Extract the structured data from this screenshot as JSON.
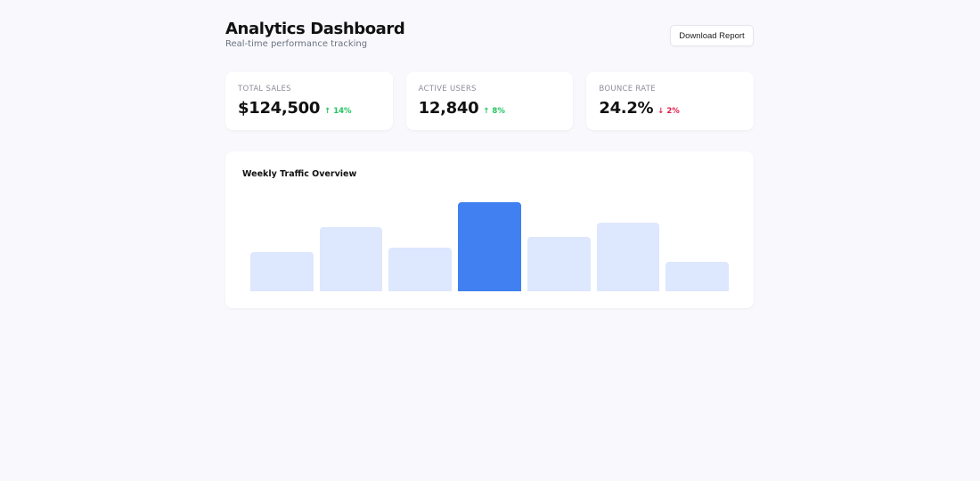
{
  "header": {
    "title": "Analytics Dashboard",
    "subtitle": "Real-time performance tracking",
    "download_label": "Download Report"
  },
  "stats": [
    {
      "label": "TOTAL SALES",
      "value": "$124,500",
      "change": "↑ 14%",
      "direction": "up"
    },
    {
      "label": "ACTIVE USERS",
      "value": "12,840",
      "change": "↑ 8%",
      "direction": "up"
    },
    {
      "label": "BOUNCE RATE",
      "value": "24.2%",
      "change": "↓ 2%",
      "direction": "down"
    }
  ],
  "colors": {
    "accent": "#4180f0",
    "bar": "#dde7fd",
    "up": "#22c55e",
    "down": "#e11d48"
  },
  "chart_data": {
    "type": "bar",
    "title": "Weekly Traffic Overview",
    "values": [
      44,
      72,
      49,
      100,
      61,
      77,
      33
    ],
    "highlight_index": 3,
    "ylim": [
      0,
      100
    ],
    "grid": false
  }
}
